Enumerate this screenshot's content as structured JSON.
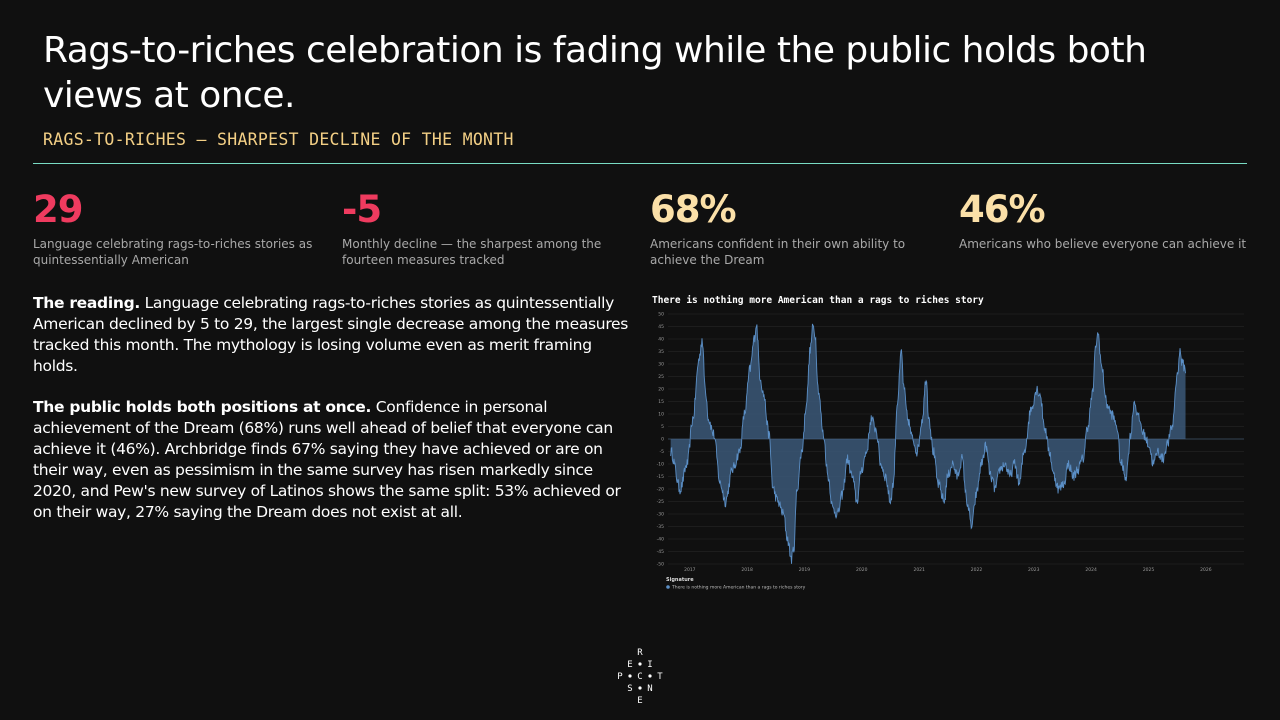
{
  "title": "Rags-to-riches celebration is fading while the public holds both views at once.",
  "subtitle": "RAGS-TO-RICHES — SHARPEST DECLINE OF THE MONTH",
  "stats": [
    {
      "value": "29",
      "desc": "Language celebrating rags-to-riches stories as quintessentially American",
      "color": "#ef3b5f"
    },
    {
      "value": "-5",
      "desc": "Monthly decline — the sharpest among the fourteen measures tracked",
      "color": "#ef3b5f"
    },
    {
      "value": "68%",
      "desc": "Americans confident in their own ability to achieve the Dream",
      "color": "#fbe0a8"
    },
    {
      "value": "46%",
      "desc": "Americans who believe everyone can achieve it",
      "color": "#fbe0a8"
    }
  ],
  "paragraphs": [
    {
      "lead": "The reading.",
      "text": " Language celebrating rags-to-riches stories as quintessentially American declined by 5 to 29, the largest single decrease among the measures tracked this month. The mythology is losing volume even as merit framing holds."
    },
    {
      "lead": "The public holds both positions at once.",
      "text": " Confidence in personal achievement of the Dream (68%) runs well ahead of belief that everyone can achieve it (46%). Archbridge finds 67% saying they have achieved or are on their way, even as pessimism in the same survey has risen markedly since 2020, and Pew's new survey of Latinos shows the same split: 53% achieved or on their way, 27% saying the Dream does not exist at all."
    }
  ],
  "logo": {
    "letters": [
      "R",
      "E",
      "I",
      "P",
      "C",
      "T",
      "S",
      "N",
      "E"
    ]
  },
  "chart_data": {
    "type": "area",
    "title": "There is nothing more American than a rags to riches story",
    "legend_title": "Signature",
    "legend_position": "bottom-left",
    "series": [
      {
        "name": "There is nothing more American than a rags to riches story",
        "color": "#5b8fc6",
        "keyframes": [
          [
            "2016-09-01",
            -5
          ],
          [
            "2016-11-01",
            -20
          ],
          [
            "2016-12-15",
            -10
          ],
          [
            "2017-01-20",
            8
          ],
          [
            "2017-03-01",
            32
          ],
          [
            "2017-03-20",
            40
          ],
          [
            "2017-04-10",
            20
          ],
          [
            "2017-05-01",
            8
          ],
          [
            "2017-06-01",
            2
          ],
          [
            "2017-07-15",
            -18
          ],
          [
            "2017-08-15",
            -25
          ],
          [
            "2017-10-01",
            -12
          ],
          [
            "2017-11-15",
            -5
          ],
          [
            "2017-12-15",
            10
          ],
          [
            "2018-01-20",
            28
          ],
          [
            "2018-02-15",
            40
          ],
          [
            "2018-03-01",
            46
          ],
          [
            "2018-03-25",
            25
          ],
          [
            "2018-04-15",
            18
          ],
          [
            "2018-05-20",
            2
          ],
          [
            "2018-06-15",
            -20
          ],
          [
            "2018-07-15",
            -25
          ],
          [
            "2018-08-20",
            -30
          ],
          [
            "2018-09-15",
            -40
          ],
          [
            "2018-10-10",
            -48
          ],
          [
            "2018-10-25",
            -44
          ],
          [
            "2018-11-15",
            -20
          ],
          [
            "2018-12-15",
            -5
          ],
          [
            "2019-01-15",
            15
          ],
          [
            "2019-02-05",
            35
          ],
          [
            "2019-02-25",
            45
          ],
          [
            "2019-03-10",
            42
          ],
          [
            "2019-03-30",
            20
          ],
          [
            "2019-05-01",
            2
          ],
          [
            "2019-06-01",
            -15
          ],
          [
            "2019-07-01",
            -28
          ],
          [
            "2019-08-01",
            -30
          ],
          [
            "2019-09-01",
            -22
          ],
          [
            "2019-10-01",
            -8
          ],
          [
            "2019-11-01",
            -15
          ],
          [
            "2019-12-01",
            -25
          ],
          [
            "2020-01-01",
            -12
          ],
          [
            "2020-02-01",
            -5
          ],
          [
            "2020-03-01",
            8
          ],
          [
            "2020-04-01",
            4
          ],
          [
            "2020-05-01",
            -10
          ],
          [
            "2020-06-01",
            -15
          ],
          [
            "2020-07-01",
            -25
          ],
          [
            "2020-07-20",
            -18
          ],
          [
            "2020-08-15",
            15
          ],
          [
            "2020-09-10",
            35
          ],
          [
            "2020-09-25",
            20
          ],
          [
            "2020-10-20",
            8
          ],
          [
            "2020-11-20",
            0
          ],
          [
            "2020-12-20",
            -5
          ],
          [
            "2021-01-20",
            8
          ],
          [
            "2021-02-15",
            25
          ],
          [
            "2021-03-01",
            10
          ],
          [
            "2021-04-01",
            -5
          ],
          [
            "2021-05-01",
            -18
          ],
          [
            "2021-06-10",
            -25
          ],
          [
            "2021-07-01",
            -15
          ],
          [
            "2021-08-01",
            -10
          ],
          [
            "2021-09-01",
            -15
          ],
          [
            "2021-10-01",
            -8
          ],
          [
            "2021-11-01",
            -25
          ],
          [
            "2021-12-01",
            -35
          ],
          [
            "2022-01-01",
            -22
          ],
          [
            "2022-02-01",
            -10
          ],
          [
            "2022-03-01",
            -3
          ],
          [
            "2022-04-01",
            -15
          ],
          [
            "2022-05-01",
            -20
          ],
          [
            "2022-06-01",
            -12
          ],
          [
            "2022-07-01",
            -10
          ],
          [
            "2022-08-01",
            -15
          ],
          [
            "2022-09-01",
            -10
          ],
          [
            "2022-10-01",
            -18
          ],
          [
            "2022-11-01",
            -5
          ],
          [
            "2022-12-15",
            12
          ],
          [
            "2023-01-20",
            20
          ],
          [
            "2023-02-10",
            18
          ],
          [
            "2023-03-10",
            5
          ],
          [
            "2023-04-10",
            -5
          ],
          [
            "2023-05-10",
            -15
          ],
          [
            "2023-06-10",
            -20
          ],
          [
            "2023-07-10",
            -18
          ],
          [
            "2023-08-10",
            -10
          ],
          [
            "2023-09-10",
            -15
          ],
          [
            "2023-10-10",
            -12
          ],
          [
            "2023-11-10",
            -8
          ],
          [
            "2023-12-10",
            5
          ],
          [
            "2024-01-10",
            18
          ],
          [
            "2024-02-01",
            38
          ],
          [
            "2024-02-15",
            42
          ],
          [
            "2024-03-10",
            28
          ],
          [
            "2024-04-10",
            14
          ],
          [
            "2024-05-10",
            10
          ],
          [
            "2024-06-10",
            6
          ],
          [
            "2024-07-10",
            -10
          ],
          [
            "2024-08-10",
            -15
          ],
          [
            "2024-09-10",
            2
          ],
          [
            "2024-10-01",
            15
          ],
          [
            "2024-11-01",
            8
          ],
          [
            "2024-12-01",
            2
          ],
          [
            "2025-01-01",
            -2
          ],
          [
            "2025-02-01",
            -10
          ],
          [
            "2025-03-01",
            -5
          ],
          [
            "2025-04-01",
            -8
          ],
          [
            "2025-05-01",
            -2
          ],
          [
            "2025-06-01",
            5
          ],
          [
            "2025-07-01",
            25
          ],
          [
            "2025-07-20",
            35
          ],
          [
            "2025-08-05",
            30
          ],
          [
            "2025-08-25",
            28
          ]
        ]
      }
    ],
    "x_ticks": [
      "2017",
      "2018",
      "2019",
      "2020",
      "2021",
      "2022",
      "2023",
      "2024",
      "2025",
      "2026"
    ],
    "y_ticks": [
      50,
      45,
      40,
      35,
      30,
      25,
      20,
      15,
      10,
      5,
      0,
      -5,
      -10,
      -15,
      -20,
      -25,
      -30,
      -35,
      -40,
      -45,
      -50
    ],
    "xlim": [
      "2016-08-15",
      "2026-09-01"
    ],
    "ylim": [
      -50,
      50
    ],
    "grid": true
  }
}
